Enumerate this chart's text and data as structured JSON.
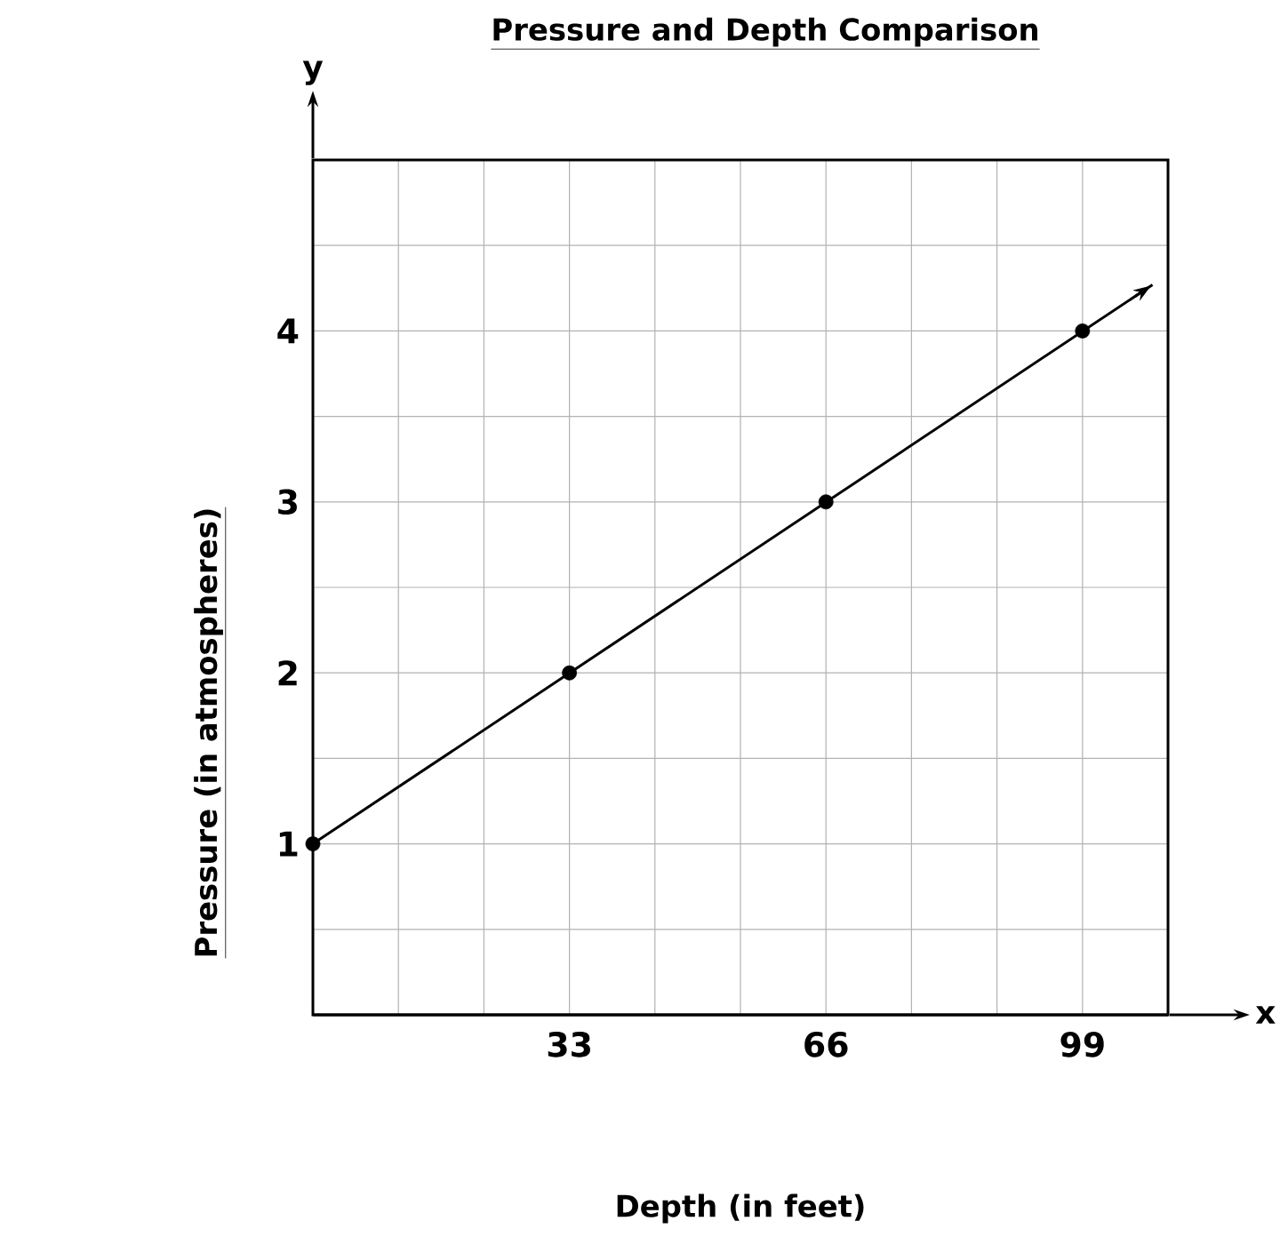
{
  "chart_data": {
    "type": "line",
    "title": "Pressure and Depth Comparison",
    "xlabel": "Depth (in feet)",
    "ylabel": "Pressure (in atmospheres)",
    "annotations": [
      "x",
      "y"
    ],
    "series": [
      {
        "color": "#000000",
        "marker": "none",
        "line_style": "solid",
        "x": [
          0,
          108
        ],
        "values": [
          1,
          4.27
        ]
      },
      {
        "type": "scatter",
        "color": "#000000",
        "marker": "circle",
        "x": [
          0,
          33,
          66,
          99
        ],
        "values": [
          1,
          2,
          3,
          4
        ]
      }
    ],
    "xlim": [
      0,
      110
    ],
    "ylim": [
      0,
      5
    ],
    "xticks": [
      {
        "value": 0,
        "label": null
      },
      33,
      66,
      99
    ],
    "yticks": [
      {
        "value": 0,
        "label": null
      },
      1,
      2,
      3,
      4,
      {
        "value": 5,
        "label": null
      }
    ],
    "grid": true
  }
}
